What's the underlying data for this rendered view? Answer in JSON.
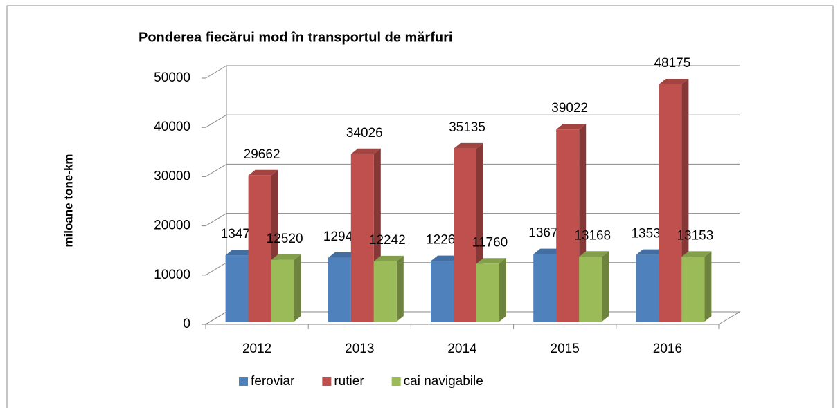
{
  "chart_data": {
    "type": "bar3d",
    "title": "Ponderea fiecărui mod în transportul de mărfuri",
    "ylabel": "miloane tone-km",
    "categories": [
      "2012",
      "2013",
      "2014",
      "2015",
      "2016"
    ],
    "series": [
      {
        "name": "feroviar",
        "color": "#4f81bd",
        "values": [
          13472,
          12941,
          12264,
          13674,
          13535
        ]
      },
      {
        "name": "rutier",
        "color": "#c0504d",
        "values": [
          29662,
          34026,
          35135,
          39022,
          48175
        ]
      },
      {
        "name": "cai navigabile",
        "color": "#9bbb59",
        "values": [
          12520,
          12242,
          11760,
          13168,
          13153
        ]
      }
    ],
    "ylim": [
      0,
      50000
    ],
    "yticks": [
      0,
      10000,
      20000,
      30000,
      40000,
      50000
    ],
    "grid": true,
    "legend": "bottom"
  }
}
